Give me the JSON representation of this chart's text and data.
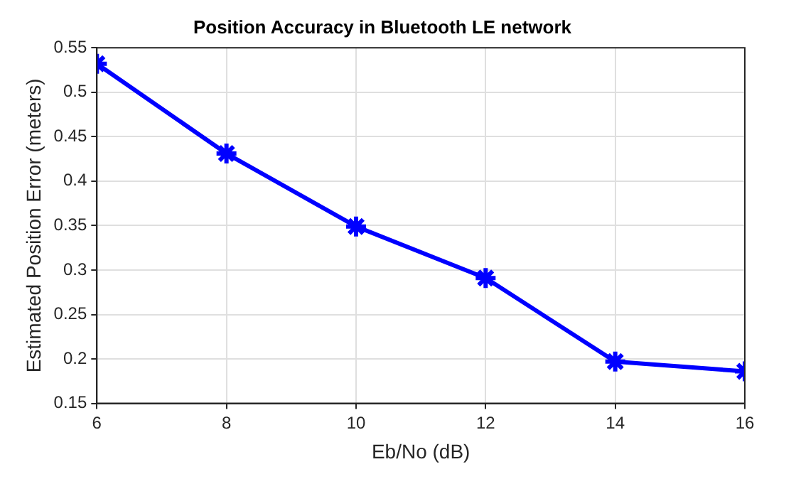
{
  "chart_data": {
    "type": "line",
    "title": "Position Accuracy in Bluetooth LE network",
    "xlabel": "Eb/No (dB)",
    "ylabel": "Estimated Position Error (meters)",
    "x": [
      6,
      8,
      10,
      12,
      14,
      16
    ],
    "series": [
      {
        "color": "#0000ff",
        "values": [
          0.532,
          0.431,
          0.349,
          0.291,
          0.197,
          0.186
        ]
      }
    ],
    "xlim": [
      6,
      16
    ],
    "xticks": [
      6,
      8,
      10,
      12,
      14,
      16
    ],
    "ylim": [
      0.15,
      0.55
    ],
    "yticks": [
      0.15,
      0.2,
      0.25,
      0.3,
      0.35,
      0.4,
      0.45,
      0.5,
      0.55
    ],
    "grid": true,
    "marker": "cross",
    "line_style": "solid"
  }
}
